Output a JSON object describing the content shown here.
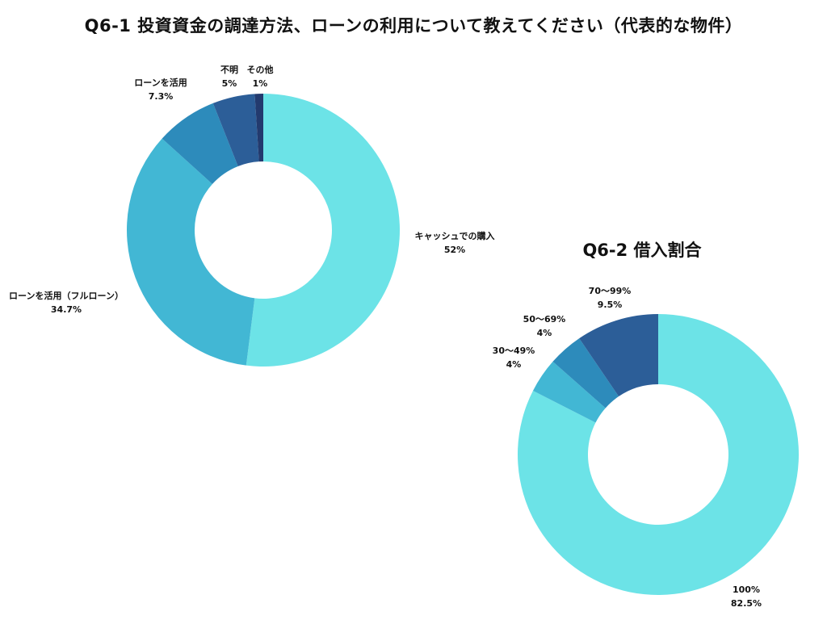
{
  "chart_data": [
    {
      "type": "pie",
      "title": "Q6-1 投資資金の調達方法、ローンの利用について教えてください（代表的な物件）",
      "hole": true,
      "slices": [
        {
          "label": "キャッシュでの購入",
          "value": 52,
          "value_label": "52%",
          "color": "#6ce3e7"
        },
        {
          "label": "ローンを活用（フルローン）",
          "value": 34.7,
          "value_label": "34.7%",
          "color": "#42b7d4"
        },
        {
          "label": "ローンを活用",
          "value": 7.3,
          "value_label": "7.3%",
          "color": "#2d8bbb"
        },
        {
          "label": "不明",
          "value": 5,
          "value_label": "5%",
          "color": "#2c5e98"
        },
        {
          "label": "その他",
          "value": 1,
          "value_label": "1%",
          "color": "#233a6e"
        }
      ]
    },
    {
      "type": "pie",
      "title": "Q6-2 借入割合",
      "hole": true,
      "slices": [
        {
          "label": "100%",
          "value": 82.5,
          "value_label": "82.5%",
          "color": "#6ce3e7"
        },
        {
          "label": "30〜49%",
          "value": 4,
          "value_label": "4%",
          "color": "#42b7d4"
        },
        {
          "label": "50〜69%",
          "value": 4,
          "value_label": "4%",
          "color": "#2d8bbb"
        },
        {
          "label": "70〜99%",
          "value": 9.5,
          "value_label": "9.5%",
          "color": "#2c5e98"
        }
      ]
    }
  ]
}
